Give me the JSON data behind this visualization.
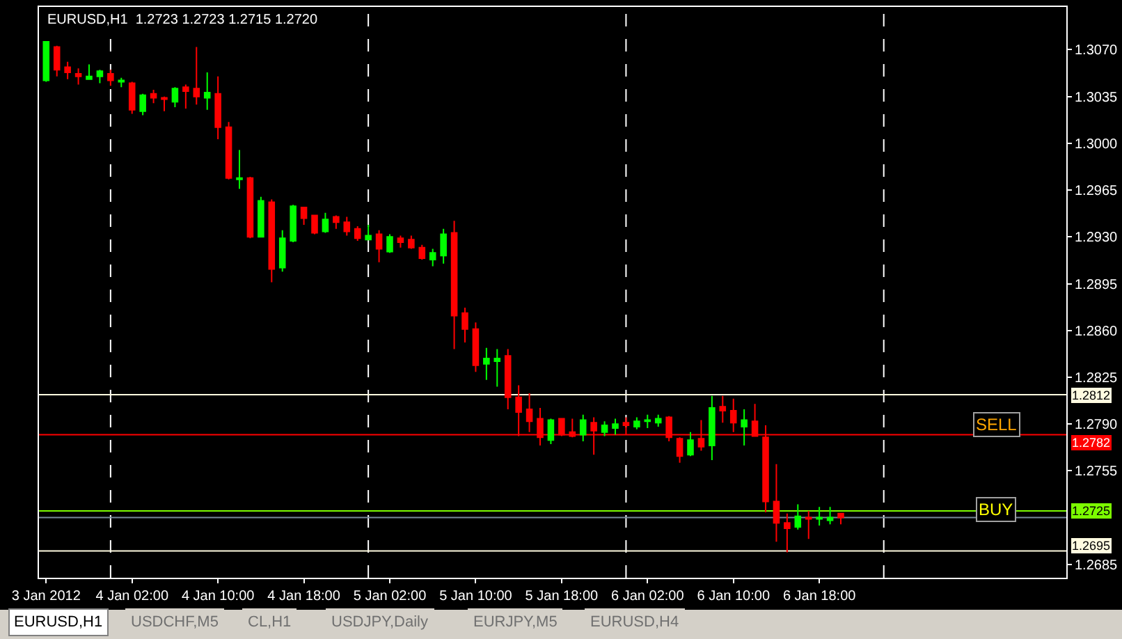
{
  "chart_data": {
    "type": "candlestick",
    "title": "EURUSD,H1  1.2723 1.2723 1.2715 1.2720",
    "x": [
      "2012-01-03T18:00",
      "2012-01-03T19:00",
      "2012-01-03T20:00",
      "2012-01-03T21:00",
      "2012-01-03T22:00",
      "2012-01-03T23:00",
      "2012-01-04T00:00",
      "2012-01-04T01:00",
      "2012-01-04T02:00",
      "2012-01-04T03:00",
      "2012-01-04T04:00",
      "2012-01-04T05:00",
      "2012-01-04T06:00",
      "2012-01-04T07:00",
      "2012-01-04T08:00",
      "2012-01-04T09:00",
      "2012-01-04T10:00",
      "2012-01-04T11:00",
      "2012-01-04T12:00",
      "2012-01-04T13:00",
      "2012-01-04T14:00",
      "2012-01-04T15:00",
      "2012-01-04T16:00",
      "2012-01-04T17:00",
      "2012-01-04T18:00",
      "2012-01-04T19:00",
      "2012-01-04T20:00",
      "2012-01-04T21:00",
      "2012-01-04T22:00",
      "2012-01-04T23:00",
      "2012-01-05T00:00",
      "2012-01-05T01:00",
      "2012-01-05T02:00",
      "2012-01-05T03:00",
      "2012-01-05T04:00",
      "2012-01-05T05:00",
      "2012-01-05T06:00",
      "2012-01-05T07:00",
      "2012-01-05T08:00",
      "2012-01-05T09:00",
      "2012-01-05T10:00",
      "2012-01-05T11:00",
      "2012-01-05T12:00",
      "2012-01-05T13:00",
      "2012-01-05T14:00",
      "2012-01-05T15:00",
      "2012-01-05T16:00",
      "2012-01-05T17:00",
      "2012-01-05T18:00",
      "2012-01-05T19:00",
      "2012-01-05T20:00",
      "2012-01-05T21:00",
      "2012-01-05T22:00",
      "2012-01-05T23:00",
      "2012-01-06T00:00",
      "2012-01-06T01:00",
      "2012-01-06T02:00",
      "2012-01-06T03:00",
      "2012-01-06T04:00",
      "2012-01-06T05:00",
      "2012-01-06T06:00",
      "2012-01-06T07:00",
      "2012-01-06T08:00",
      "2012-01-06T09:00",
      "2012-01-06T10:00",
      "2012-01-06T11:00",
      "2012-01-06T12:00",
      "2012-01-06T13:00",
      "2012-01-06T14:00",
      "2012-01-06T15:00",
      "2012-01-06T16:00",
      "2012-01-06T17:00",
      "2012-01-06T18:00",
      "2012-01-06T19:00",
      "2012-01-06T20:00"
    ],
    "ohlc": [
      [
        1.3047,
        1.3076,
        1.3046,
        1.3076
      ],
      [
        1.3072,
        1.3073,
        1.305,
        1.3055
      ],
      [
        1.3057,
        1.3061,
        1.3048,
        1.3053
      ],
      [
        1.3052,
        1.3056,
        1.3044,
        1.305
      ],
      [
        1.3048,
        1.3059,
        1.3048,
        1.305
      ],
      [
        1.305,
        1.3055,
        1.3045,
        1.3054
      ],
      [
        1.3052,
        1.3055,
        1.3043,
        1.3047
      ],
      [
        1.3046,
        1.3049,
        1.3042,
        1.3047
      ],
      [
        1.3045,
        1.3046,
        1.3022,
        1.3025
      ],
      [
        1.3024,
        1.3037,
        1.3021,
        1.3036
      ],
      [
        1.3037,
        1.304,
        1.303,
        1.3034
      ],
      [
        1.3034,
        1.3035,
        1.3024,
        1.3033
      ],
      [
        1.3031,
        1.3042,
        1.3027,
        1.3041
      ],
      [
        1.3042,
        1.3044,
        1.3026,
        1.3039
      ],
      [
        1.3041,
        1.3072,
        1.3029,
        1.3035
      ],
      [
        1.3034,
        1.3053,
        1.3025,
        1.3038
      ],
      [
        1.3037,
        1.305,
        1.3003,
        1.3012
      ],
      [
        1.3012,
        1.3016,
        1.2973,
        1.2974
      ],
      [
        1.2973,
        1.2995,
        1.2966,
        1.2974
      ],
      [
        1.2974,
        1.2975,
        1.2929,
        1.293
      ],
      [
        1.293,
        1.296,
        1.293,
        1.2957
      ],
      [
        1.2956,
        1.2958,
        1.2896,
        1.2906
      ],
      [
        1.2907,
        1.2935,
        1.2904,
        1.2929
      ],
      [
        1.2927,
        1.2954,
        1.2926,
        1.2953
      ],
      [
        1.2952,
        1.2952,
        1.2939,
        1.2944
      ],
      [
        1.2946,
        1.2946,
        1.2932,
        1.2933
      ],
      [
        1.2934,
        1.2948,
        1.2933,
        1.2943
      ],
      [
        1.2945,
        1.2946,
        1.2936,
        1.2941
      ],
      [
        1.2941,
        1.2945,
        1.2931,
        1.2934
      ],
      [
        1.2936,
        1.2938,
        1.2927,
        1.2929
      ],
      [
        1.2928,
        1.2939,
        1.2928,
        1.2931
      ],
      [
        1.2932,
        1.2935,
        1.2911,
        1.2921
      ],
      [
        1.2919,
        1.2932,
        1.2918,
        1.293
      ],
      [
        1.2929,
        1.2931,
        1.2922,
        1.2926
      ],
      [
        1.2928,
        1.2931,
        1.2921,
        1.2922
      ],
      [
        1.2922,
        1.2924,
        1.2913,
        1.2914
      ],
      [
        1.2913,
        1.2921,
        1.2908,
        1.2918
      ],
      [
        1.2916,
        1.2936,
        1.291,
        1.2932
      ],
      [
        1.2933,
        1.2942,
        1.2846,
        1.2871
      ],
      [
        1.2873,
        1.2877,
        1.2851,
        1.2861
      ],
      [
        1.2861,
        1.2866,
        1.2829,
        1.2834
      ],
      [
        1.2835,
        1.2847,
        1.2823,
        1.2839
      ],
      [
        1.2837,
        1.2846,
        1.2818,
        1.2839
      ],
      [
        1.2841,
        1.2846,
        1.2801,
        1.281
      ],
      [
        1.281,
        1.2819,
        1.2781,
        1.2799
      ],
      [
        1.2801,
        1.2813,
        1.2784,
        1.2792
      ],
      [
        1.2794,
        1.2802,
        1.2774,
        1.278
      ],
      [
        1.2778,
        1.2794,
        1.2775,
        1.2793
      ],
      [
        1.2794,
        1.2794,
        1.2781,
        1.2782
      ],
      [
        1.2784,
        1.2794,
        1.278,
        1.2781
      ],
      [
        1.2782,
        1.2797,
        1.2777,
        1.2793
      ],
      [
        1.2791,
        1.2795,
        1.2767,
        1.2785
      ],
      [
        1.2784,
        1.2792,
        1.2781,
        1.2789
      ],
      [
        1.2787,
        1.2794,
        1.2782,
        1.279
      ],
      [
        1.2791,
        1.2795,
        1.2782,
        1.2789
      ],
      [
        1.2788,
        1.2795,
        1.2786,
        1.2792
      ],
      [
        1.2792,
        1.2797,
        1.2787,
        1.2793
      ],
      [
        1.2791,
        1.2797,
        1.2788,
        1.2794
      ],
      [
        1.2795,
        1.2796,
        1.2777,
        1.278
      ],
      [
        1.2779,
        1.278,
        1.2761,
        1.2766
      ],
      [
        1.2767,
        1.2784,
        1.2766,
        1.2778
      ],
      [
        1.2779,
        1.2793,
        1.277,
        1.2773
      ],
      [
        1.2774,
        1.2811,
        1.2763,
        1.2802
      ],
      [
        1.2803,
        1.2811,
        1.2791,
        1.28
      ],
      [
        1.28,
        1.2809,
        1.2784,
        1.2791
      ],
      [
        1.2788,
        1.2801,
        1.2774,
        1.2793
      ],
      [
        1.2792,
        1.2805,
        1.2781,
        1.2781
      ],
      [
        1.278,
        1.2789,
        1.2724,
        1.2732
      ],
      [
        1.2732,
        1.276,
        1.2702,
        1.2716
      ],
      [
        1.2716,
        1.2723,
        1.2694,
        1.2712
      ],
      [
        1.2713,
        1.273,
        1.2711,
        1.2721
      ],
      [
        1.272,
        1.2725,
        1.2704,
        1.2719
      ],
      [
        1.2719,
        1.2728,
        1.2714,
        1.272
      ],
      [
        1.2718,
        1.2728,
        1.2715,
        1.272
      ],
      [
        1.2723,
        1.2723,
        1.2715,
        1.272
      ]
    ],
    "xlim": [
      "2012-01-03T17:20",
      "2012-01-07T17:00"
    ],
    "xticks": [
      {
        "value": "2012-01-03T18:00",
        "label": "3 Jan 2012"
      },
      {
        "value": "2012-01-04T02:00",
        "label": "4 Jan 02:00"
      },
      {
        "value": "2012-01-04T10:00",
        "label": "4 Jan 10:00"
      },
      {
        "value": "2012-01-04T18:00",
        "label": "4 Jan 18:00"
      },
      {
        "value": "2012-01-05T02:00",
        "label": "5 Jan 02:00"
      },
      {
        "value": "2012-01-05T10:00",
        "label": "5 Jan 10:00"
      },
      {
        "value": "2012-01-05T18:00",
        "label": "5 Jan 18:00"
      },
      {
        "value": "2012-01-06T02:00",
        "label": "6 Jan 02:00"
      },
      {
        "value": "2012-01-06T10:00",
        "label": "6 Jan 10:00"
      },
      {
        "value": "2012-01-06T18:00",
        "label": "6 Jan 18:00"
      }
    ],
    "ylim": [
      1.2675,
      1.3102
    ],
    "yticks": [
      {
        "value": 1.307,
        "label": "1.3070"
      },
      1.3035,
      {
        "value": 1.3,
        "label": "1.3000"
      },
      1.2965,
      {
        "value": 1.293,
        "label": "1.2930"
      },
      1.2895,
      {
        "value": 1.286,
        "label": "1.2860"
      },
      1.2825,
      {
        "value": 1.279,
        "label": "1.2790"
      },
      1.2755,
      1.2685
    ],
    "grid": false,
    "ref_lines": [
      {
        "axis": "x",
        "value": "2012-01-04T00:00",
        "color": "#ffffff",
        "line_style": "dashed"
      },
      {
        "axis": "x",
        "value": "2012-01-05T00:00",
        "color": "#ffffff",
        "line_style": "dashed"
      },
      {
        "axis": "x",
        "value": "2012-01-06T00:00",
        "color": "#ffffff",
        "line_style": "dashed"
      },
      {
        "axis": "x",
        "value": "2012-01-07T00:00",
        "color": "#ffffff",
        "line_style": "dashed"
      },
      {
        "axis": "y",
        "value": 1.2812,
        "label": "1.2812",
        "color": "#fffbe0"
      },
      {
        "axis": "y",
        "value": 1.2782,
        "label": "1.2782",
        "color": "#ff0000"
      },
      {
        "axis": "y",
        "value": 1.2725,
        "label": "1.2725",
        "color": "#7cfc00"
      },
      {
        "axis": "y",
        "value": 1.272,
        "color": "#778899"
      },
      {
        "axis": "y",
        "value": 1.2695,
        "label": "1.2695",
        "color": "#fffbe0"
      }
    ],
    "annotations": [
      {
        "text": "SELL",
        "x": "2012-01-07T10:30",
        "y": 1.279
      },
      {
        "text": "BUY",
        "x": "2012-01-07T10:30",
        "y": 1.2726
      },
      "EURUSD,H1",
      "USDCHF,M5",
      "CL,H1",
      "USDJPY,Daily",
      "EURJPY,M5",
      "EURUSD,H4"
    ]
  }
}
